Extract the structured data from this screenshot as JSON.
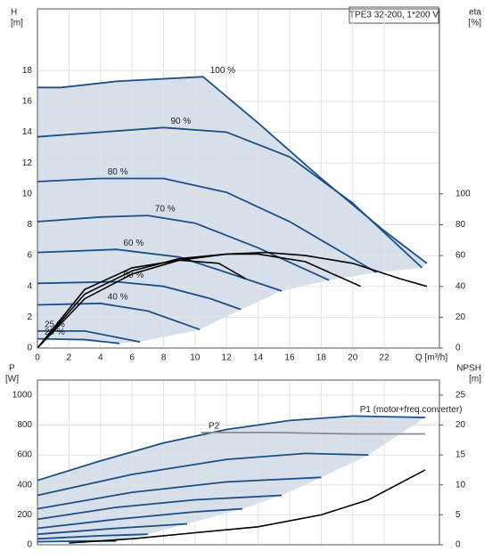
{
  "chart_data": [
    {
      "type": "line",
      "title": "TPE3 32-200, 1*200 V",
      "ylabel": "H",
      "yunit": "[m]",
      "y2label": "eta",
      "y2unit": "[%]",
      "xlabel": "Q [m³/h]",
      "xlim": [
        0,
        25.5
      ],
      "xticks": [
        0,
        2,
        4,
        6,
        8,
        10,
        12,
        14,
        16,
        18,
        20,
        22
      ],
      "ylim": [
        0,
        22
      ],
      "yticks": [
        0,
        2,
        4,
        6,
        8,
        10,
        12,
        14,
        16,
        18
      ],
      "y2lim": [
        0,
        220
      ],
      "y2ticks": [
        0,
        20,
        40,
        60,
        80,
        100
      ],
      "grid": true,
      "series": [
        {
          "name": "100 %",
          "color": "#1d4f85",
          "x": [
            0,
            1.5,
            5,
            10.5,
            14,
            18,
            22,
            24.7
          ],
          "values": [
            16.9,
            16.9,
            17.3,
            17.6,
            14.6,
            11,
            7.6,
            5.5
          ]
        },
        {
          "name": "90 %",
          "color": "#1d4f85",
          "x": [
            0,
            4,
            8,
            12,
            16,
            20,
            24.4
          ],
          "values": [
            13.7,
            14,
            14.3,
            14,
            12.4,
            9.4,
            5.2
          ]
        },
        {
          "name": "80 %",
          "color": "#1d4f85",
          "x": [
            0,
            4,
            8,
            12,
            16,
            21.5
          ],
          "values": [
            10.8,
            11,
            11,
            10.1,
            8.2,
            4.9
          ]
        },
        {
          "name": "70 %",
          "color": "#1d4f85",
          "x": [
            0,
            4,
            7,
            10,
            14,
            18.5
          ],
          "values": [
            8.2,
            8.5,
            8.6,
            8.1,
            6.5,
            4.4
          ]
        },
        {
          "name": "60 %",
          "color": "#1d4f85",
          "x": [
            0,
            5,
            9,
            12,
            15.5
          ],
          "values": [
            6.2,
            6.4,
            5.9,
            4.9,
            3.7
          ]
        },
        {
          "name": "50 %",
          "color": "#1d4f85",
          "x": [
            0,
            5,
            8,
            11,
            12.9
          ],
          "values": [
            4.2,
            4.3,
            4,
            3.2,
            2.5
          ]
        },
        {
          "name": "40 %",
          "color": "#1d4f85",
          "x": [
            0,
            4,
            7,
            10.3
          ],
          "values": [
            2.8,
            2.9,
            2.4,
            1.2
          ]
        },
        {
          "name": "25 %",
          "color": "#1d4f85",
          "x": [
            0,
            3,
            6.5
          ],
          "values": [
            1.1,
            1.1,
            0.4
          ]
        },
        {
          "name": "20 %",
          "color": "#1d4f85",
          "x": [
            0,
            3,
            5.2
          ],
          "values": [
            0.6,
            0.55,
            0.3
          ]
        },
        {
          "axis": "y2",
          "color": "#000000",
          "x": [
            0,
            3,
            6,
            9,
            12,
            14.5,
            17,
            20,
            23,
            24.7
          ],
          "values": [
            0,
            32,
            48,
            57,
            61,
            62,
            60,
            55,
            45,
            40
          ]
        },
        {
          "axis": "y2",
          "color": "#000000",
          "x": [
            0,
            3,
            6,
            9,
            12,
            14,
            17,
            20.5
          ],
          "values": [
            0,
            35,
            50,
            58,
            61,
            61,
            56,
            40
          ]
        },
        {
          "axis": "y2",
          "color": "#000000",
          "x": [
            0,
            3,
            6,
            9,
            11.5,
            13.2
          ],
          "values": [
            0,
            38,
            52,
            57,
            55,
            45
          ]
        }
      ]
    },
    {
      "type": "line",
      "ylabel": "P",
      "yunit": "[W]",
      "y2label": "NPSH",
      "y2unit": "[m]",
      "xlim": [
        0,
        25.5
      ],
      "xticks": [
        0,
        2,
        4,
        6,
        8,
        10,
        12,
        14,
        16,
        18,
        20,
        22
      ],
      "ylim": [
        0,
        1100
      ],
      "yticks": [
        0,
        200,
        400,
        600,
        800,
        1000
      ],
      "y2lim": [
        0,
        27.5
      ],
      "y2ticks": [
        0,
        5,
        10,
        15,
        20,
        25
      ],
      "grid": true,
      "series": [
        {
          "name": "P1 (motor+freq.converter)",
          "color": "#1d4f85",
          "x": [
            0,
            4,
            8,
            12,
            16,
            20,
            24.6
          ],
          "values": [
            430,
            560,
            680,
            770,
            830,
            860,
            850
          ]
        },
        {
          "name": "P2",
          "color": "#8a8a8a",
          "x": [
            10.4,
            15,
            20,
            24.6
          ],
          "values": [
            750,
            750,
            740,
            740
          ]
        },
        {
          "color": "#1d4f85",
          "x": [
            0,
            6,
            12,
            17,
            21
          ],
          "values": [
            330,
            470,
            570,
            610,
            600
          ]
        },
        {
          "color": "#1d4f85",
          "x": [
            0,
            6,
            12,
            18
          ],
          "values": [
            240,
            350,
            420,
            450
          ]
        },
        {
          "color": "#1d4f85",
          "x": [
            0,
            5,
            10,
            15.5
          ],
          "values": [
            170,
            250,
            300,
            330
          ]
        },
        {
          "color": "#1d4f85",
          "x": [
            0,
            5,
            10,
            13
          ],
          "values": [
            110,
            170,
            220,
            240
          ]
        },
        {
          "color": "#1d4f85",
          "x": [
            0,
            5,
            9.5
          ],
          "values": [
            70,
            110,
            140
          ]
        },
        {
          "color": "#1d4f85",
          "x": [
            0,
            4,
            7
          ],
          "values": [
            40,
            60,
            70
          ]
        },
        {
          "color": "#1d4f85",
          "x": [
            0,
            3,
            5
          ],
          "values": [
            20,
            25,
            25
          ]
        },
        {
          "axis": "y2",
          "color": "#000000",
          "x": [
            2,
            6,
            10,
            14,
            18,
            21,
            24.6
          ],
          "values": [
            0.3,
            1,
            2,
            3,
            5,
            7.5,
            12.5
          ]
        }
      ]
    }
  ]
}
